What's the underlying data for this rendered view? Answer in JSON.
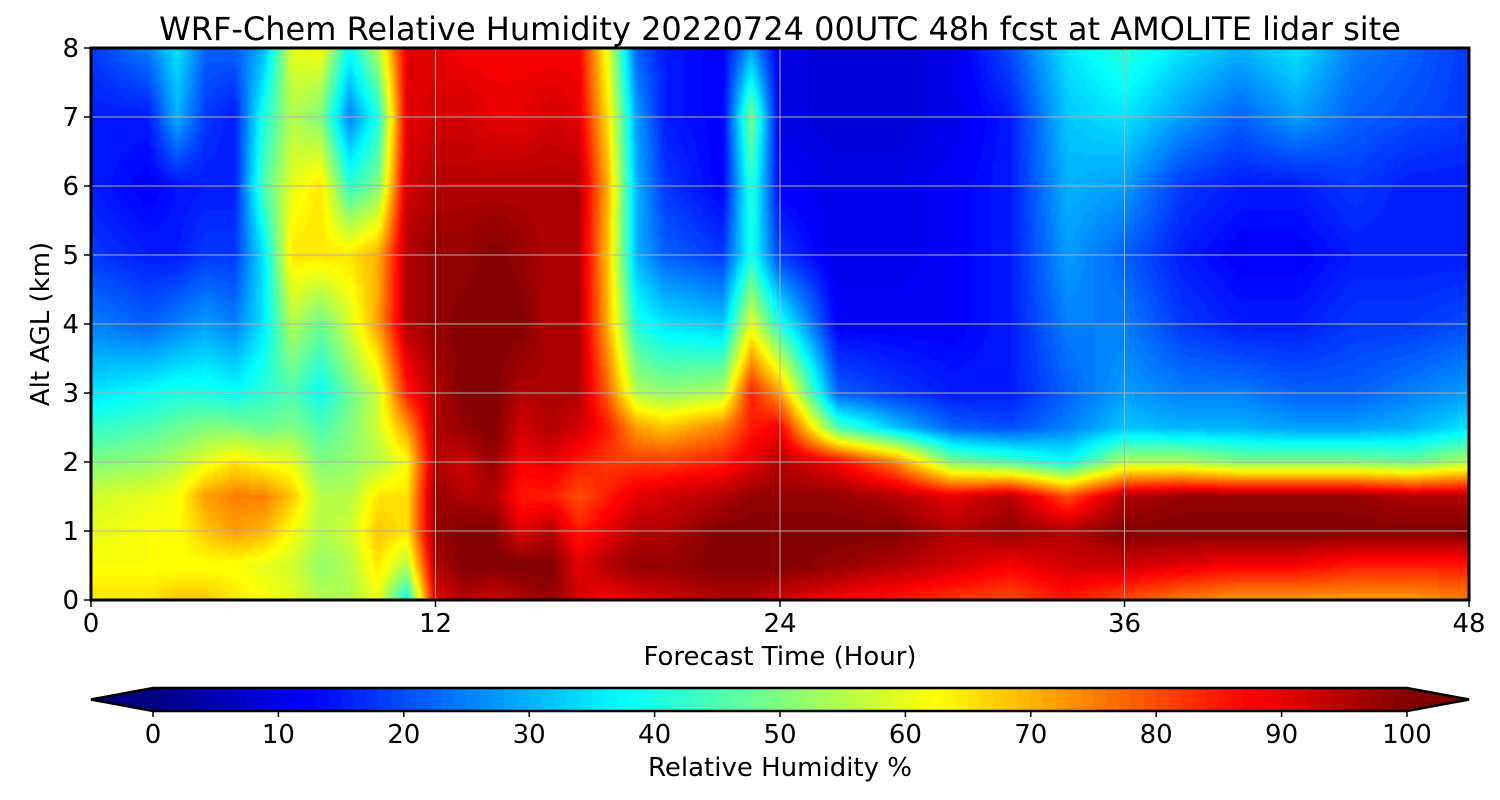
{
  "chart_data": {
    "type": "heatmap",
    "title": "WRF-Chem Relative Humidity 20220724 00UTC 48h fcst at AMOLITE lidar site",
    "xlabel": "Forecast Time (Hour)",
    "ylabel": "Alt AGL (km)",
    "xlim": [
      0,
      48
    ],
    "ylim": [
      0,
      8
    ],
    "xticks": [
      0,
      12,
      24,
      36,
      48
    ],
    "yticks": [
      0,
      1,
      2,
      3,
      4,
      5,
      6,
      7,
      8
    ],
    "grid": true,
    "colormap": "jet",
    "colorbar": {
      "label": "Relative Humidity %",
      "range": [
        0,
        100
      ],
      "ticks": [
        0,
        10,
        20,
        30,
        40,
        50,
        60,
        70,
        80,
        90,
        100
      ],
      "extend": "both",
      "orientation": "horizontal"
    },
    "altitudes_km": [
      0,
      0.5,
      1,
      1.5,
      2,
      2.5,
      3,
      4,
      5,
      6,
      7,
      8
    ],
    "profiles": [
      {
        "hour": 0,
        "rh": [
          65,
          62,
          60,
          58,
          50,
          42,
          35,
          25,
          18,
          15,
          15,
          18
        ]
      },
      {
        "hour": 2,
        "rh": [
          65,
          62,
          62,
          60,
          52,
          45,
          38,
          22,
          15,
          12,
          15,
          25
        ]
      },
      {
        "hour": 3,
        "rh": [
          68,
          62,
          62,
          62,
          55,
          48,
          40,
          25,
          15,
          14,
          30,
          35
        ]
      },
      {
        "hour": 4,
        "rh": [
          68,
          62,
          68,
          72,
          60,
          50,
          40,
          28,
          18,
          15,
          18,
          22
        ]
      },
      {
        "hour": 5,
        "rh": [
          65,
          62,
          72,
          75,
          65,
          50,
          38,
          25,
          18,
          15,
          15,
          22
        ]
      },
      {
        "hour": 6,
        "rh": [
          62,
          60,
          70,
          75,
          62,
          48,
          42,
          35,
          35,
          45,
          40,
          30
        ]
      },
      {
        "hour": 7,
        "rh": [
          60,
          58,
          62,
          68,
          60,
          50,
          45,
          55,
          65,
          60,
          55,
          60
        ]
      },
      {
        "hour": 8,
        "rh": [
          55,
          52,
          55,
          55,
          50,
          45,
          38,
          48,
          65,
          65,
          50,
          62
        ]
      },
      {
        "hour": 9,
        "rh": [
          55,
          55,
          58,
          55,
          52,
          50,
          48,
          58,
          65,
          42,
          25,
          38
        ]
      },
      {
        "hour": 10,
        "rh": [
          60,
          65,
          68,
          65,
          55,
          58,
          58,
          72,
          70,
          50,
          40,
          55
        ]
      },
      {
        "hour": 11,
        "rh": [
          38,
          55,
          65,
          65,
          62,
          72,
          85,
          95,
          95,
          92,
          90,
          90
        ]
      },
      {
        "hour": 12,
        "rh": [
          90,
          95,
          98,
          98,
          95,
          95,
          95,
          98,
          98,
          95,
          92,
          90
        ]
      },
      {
        "hour": 13,
        "rh": [
          95,
          100,
          100,
          95,
          92,
          98,
          100,
          100,
          98,
          95,
          92,
          88
        ]
      },
      {
        "hour": 14,
        "rh": [
          92,
          100,
          100,
          95,
          98,
          100,
          100,
          100,
          100,
          95,
          90,
          88
        ]
      },
      {
        "hour": 15,
        "rh": [
          95,
          100,
          90,
          85,
          88,
          92,
          95,
          100,
          98,
          95,
          90,
          88
        ]
      },
      {
        "hour": 16,
        "rh": [
          98,
          100,
          95,
          85,
          90,
          95,
          96,
          95,
          95,
          95,
          92,
          88
        ]
      },
      {
        "hour": 17,
        "rh": [
          92,
          90,
          85,
          80,
          85,
          92,
          95,
          95,
          95,
          95,
          90,
          88
        ]
      },
      {
        "hour": 18,
        "rh": [
          88,
          95,
          90,
          85,
          82,
          85,
          78,
          70,
          68,
          70,
          65,
          60
        ]
      },
      {
        "hour": 19,
        "rh": [
          90,
          98,
          95,
          90,
          82,
          72,
          55,
          40,
          30,
          30,
          28,
          22
        ]
      },
      {
        "hour": 20,
        "rh": [
          92,
          98,
          95,
          92,
          82,
          68,
          52,
          35,
          22,
          18,
          15,
          15
        ]
      },
      {
        "hour": 22,
        "rh": [
          95,
          100,
          100,
          95,
          85,
          75,
          55,
          32,
          18,
          12,
          12,
          12
        ]
      },
      {
        "hour": 23,
        "rh": [
          95,
          100,
          100,
          98,
          90,
          85,
          85,
          60,
          40,
          42,
          50,
          28
        ]
      },
      {
        "hour": 24,
        "rh": [
          92,
          100,
          100,
          98,
          95,
          88,
          72,
          40,
          18,
          12,
          10,
          10
        ]
      },
      {
        "hour": 26,
        "rh": [
          88,
          98,
          100,
          98,
          88,
          45,
          22,
          12,
          10,
          10,
          8,
          8
        ]
      },
      {
        "hour": 28,
        "rh": [
          85,
          95,
          100,
          95,
          75,
          32,
          18,
          12,
          10,
          10,
          8,
          8
        ]
      },
      {
        "hour": 30,
        "rh": [
          82,
          92,
          95,
          90,
          50,
          22,
          15,
          12,
          12,
          12,
          10,
          10
        ]
      },
      {
        "hour": 32,
        "rh": [
          80,
          88,
          98,
          95,
          45,
          20,
          15,
          15,
          15,
          15,
          15,
          20
        ]
      },
      {
        "hour": 34,
        "rh": [
          85,
          92,
          95,
          80,
          38,
          25,
          22,
          25,
          28,
          30,
          32,
          35
        ]
      },
      {
        "hour": 36,
        "rh": [
          80,
          92,
          100,
          95,
          55,
          32,
          28,
          25,
          22,
          28,
          35,
          42
        ]
      },
      {
        "hour": 38,
        "rh": [
          75,
          90,
          100,
          98,
          55,
          30,
          25,
          18,
          15,
          18,
          28,
          35
        ]
      },
      {
        "hour": 40,
        "rh": [
          72,
          88,
          100,
          98,
          50,
          30,
          25,
          15,
          12,
          15,
          22,
          30
        ]
      },
      {
        "hour": 42,
        "rh": [
          72,
          88,
          100,
          98,
          50,
          28,
          22,
          15,
          12,
          15,
          28,
          35
        ]
      },
      {
        "hour": 44,
        "rh": [
          72,
          85,
          100,
          98,
          50,
          28,
          22,
          18,
          15,
          18,
          22,
          25
        ]
      },
      {
        "hour": 46,
        "rh": [
          72,
          85,
          100,
          95,
          48,
          30,
          25,
          18,
          15,
          15,
          20,
          22
        ]
      },
      {
        "hour": 48,
        "rh": [
          75,
          85,
          100,
          95,
          55,
          35,
          28,
          20,
          15,
          15,
          18,
          18
        ]
      }
    ]
  }
}
